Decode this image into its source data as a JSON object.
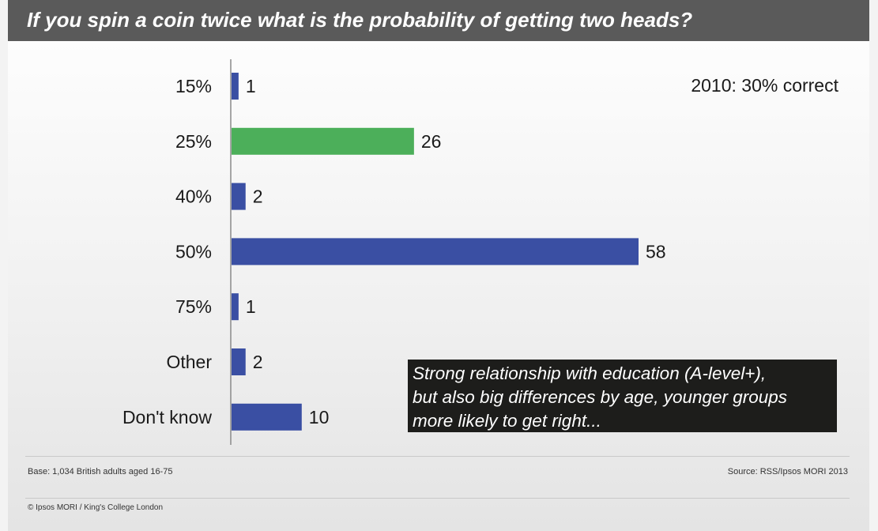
{
  "header": {
    "title": "If you spin a coin twice what is the probability of getting two heads?"
  },
  "note": "2010: 30% correct",
  "callout": {
    "line1": "Strong relationship with education (A-level+),",
    "line2": "but also big differences by age, younger groups",
    "line3": "more likely to get right..."
  },
  "footer": {
    "base": "Base: 1,034 British adults aged 16-75",
    "source": "Source: RSS/Ipsos MORI 2013",
    "copyright": "© Ipsos MORI / King's College London"
  },
  "colors": {
    "bar": "#3a4fa3",
    "correct": "#4caf5a",
    "title_bg": "#5a5a5a"
  },
  "chart_data": {
    "type": "bar",
    "orientation": "horizontal",
    "categories": [
      "15%",
      "25%",
      "40%",
      "50%",
      "75%",
      "Other",
      "Don't know"
    ],
    "values": [
      1,
      26,
      2,
      58,
      1,
      2,
      10
    ],
    "highlight_index": 1,
    "grid": false
  }
}
